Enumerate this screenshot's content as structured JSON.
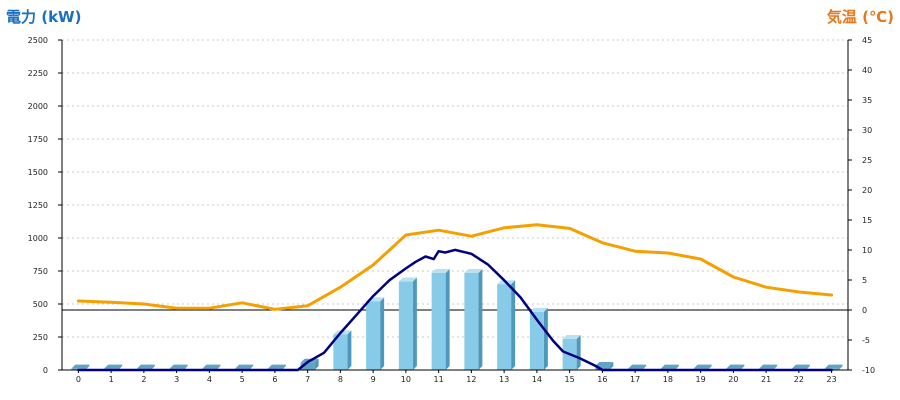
{
  "chart_data": {
    "type": "bar",
    "y_axis_title": "電力 (kW)",
    "y2_axis_title": "気温 (℃)",
    "categories": [
      "0",
      "1",
      "2",
      "3",
      "4",
      "5",
      "6",
      "7",
      "8",
      "9",
      "10",
      "11",
      "12",
      "13",
      "14",
      "15",
      "16",
      "17",
      "18",
      "19",
      "20",
      "21",
      "22",
      "23"
    ],
    "ylim": [
      0,
      2500
    ],
    "y_ticks": [
      "0",
      "250",
      "500",
      "750",
      "1000",
      "1250",
      "1500",
      "1750",
      "2000",
      "2250",
      "2500"
    ],
    "y2lim": [
      -10,
      45
    ],
    "y2_ticks": [
      "-10",
      "-5",
      "0",
      "5",
      "10",
      "15",
      "20",
      "25",
      "30",
      "35",
      "40",
      "45"
    ],
    "horizontal_line_y2": 0,
    "grid": true,
    "series": [
      {
        "kind": "bar",
        "axis": "left",
        "color": "#87cbe8",
        "values": [
          10,
          10,
          10,
          10,
          10,
          10,
          10,
          55,
          270,
          520,
          670,
          735,
          735,
          650,
          440,
          235,
          30,
          10,
          10,
          10,
          10,
          10,
          10,
          10
        ]
      },
      {
        "kind": "line",
        "axis": "left",
        "color": "#000080",
        "x": [
          0,
          3,
          6.7,
          7,
          7.5,
          8,
          8.5,
          9,
          9.5,
          10,
          10.3,
          10.6,
          10.85,
          11,
          11.2,
          11.5,
          12,
          12.5,
          13,
          13.5,
          14,
          14.5,
          14.8,
          15.3,
          15.8,
          16,
          16.5,
          23
        ],
        "values": [
          0,
          0,
          0,
          60,
          130,
          280,
          420,
          560,
          680,
          770,
          820,
          860,
          840,
          900,
          890,
          910,
          880,
          800,
          680,
          550,
          380,
          220,
          140,
          90,
          30,
          0,
          0,
          0
        ]
      },
      {
        "kind": "line",
        "axis": "right",
        "color": "#f5a000",
        "x": [
          0,
          1,
          2,
          3,
          4,
          5,
          6,
          7,
          8,
          9,
          10,
          11,
          12,
          13,
          14,
          15,
          16,
          17,
          18,
          19,
          20,
          21,
          22,
          23
        ],
        "values": [
          1.5,
          1.3,
          1.0,
          0.3,
          0.3,
          1.2,
          0.1,
          0.7,
          3.8,
          7.5,
          12.5,
          13.3,
          12.3,
          13.7,
          14.2,
          13.6,
          11.2,
          9.8,
          9.5,
          8.5,
          5.5,
          3.8,
          3.0,
          2.5
        ]
      }
    ]
  },
  "colors": {
    "left_title": "#1a6fc0",
    "right_title": "#e8771c",
    "bar_front": "#87cbe8",
    "bar_side": "#4d98bc",
    "bar_top": "#b8e2f4",
    "bar_stub": "#5fa3c6",
    "power_line": "#000080",
    "temp_line": "#f5a000",
    "grid": "#bbbbbb",
    "axis": "#000000"
  }
}
